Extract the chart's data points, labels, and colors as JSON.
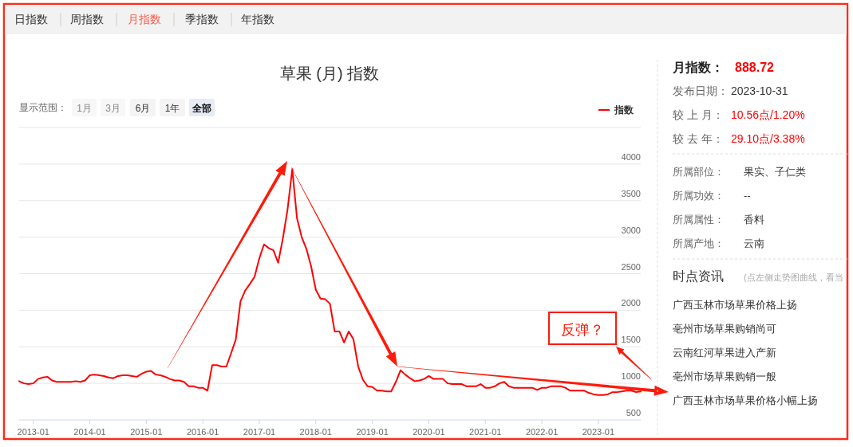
{
  "chart_data": [
    {
      "type": "line",
      "title": "草果 (月) 指数",
      "legend": "top right",
      "grid": "y",
      "x": [
        "2012-10",
        "2012-11",
        "2012-12",
        "2013-01",
        "2013-02",
        "2013-03",
        "2013-04",
        "2013-05",
        "2013-06",
        "2013-07",
        "2013-08",
        "2013-09",
        "2013-10",
        "2013-11",
        "2013-12",
        "2014-01",
        "2014-02",
        "2014-03",
        "2014-04",
        "2014-05",
        "2014-06",
        "2014-07",
        "2014-08",
        "2014-09",
        "2014-10",
        "2014-11",
        "2014-12",
        "2015-01",
        "2015-02",
        "2015-03",
        "2015-04",
        "2015-05",
        "2015-06",
        "2015-07",
        "2015-08",
        "2015-09",
        "2015-10",
        "2015-11",
        "2015-12",
        "2016-01",
        "2016-02",
        "2016-03",
        "2016-04",
        "2016-05",
        "2016-06",
        "2016-07",
        "2016-08",
        "2016-09",
        "2016-10",
        "2016-11",
        "2016-12",
        "2017-01",
        "2017-02",
        "2017-03",
        "2017-04",
        "2017-05",
        "2017-06",
        "2017-07",
        "2017-08",
        "2017-09",
        "2017-10",
        "2017-11",
        "2017-12",
        "2018-01",
        "2018-02",
        "2018-03",
        "2018-04",
        "2018-05",
        "2018-06",
        "2018-07",
        "2018-08",
        "2018-09",
        "2018-10",
        "2018-11",
        "2018-12",
        "2019-01",
        "2019-02",
        "2019-03",
        "2019-04",
        "2019-05",
        "2019-06",
        "2019-07",
        "2019-08",
        "2019-09",
        "2019-10",
        "2019-11",
        "2019-12",
        "2020-01",
        "2020-02",
        "2020-03",
        "2020-04",
        "2020-05",
        "2020-06",
        "2020-07",
        "2020-08",
        "2020-09",
        "2020-10",
        "2020-11",
        "2020-12",
        "2021-01",
        "2021-02",
        "2021-03",
        "2021-04",
        "2021-05",
        "2021-06",
        "2021-07",
        "2021-08",
        "2021-09",
        "2021-10",
        "2021-11",
        "2021-12",
        "2022-01",
        "2022-02",
        "2022-03",
        "2022-04",
        "2022-05",
        "2022-06",
        "2022-07",
        "2022-08",
        "2022-09",
        "2022-10",
        "2022-11",
        "2022-12",
        "2023-01",
        "2023-02",
        "2023-03",
        "2023-04",
        "2023-05",
        "2023-06",
        "2023-07",
        "2023-08",
        "2023-09",
        "2023-10"
      ],
      "series": [
        {
          "name": "指数",
          "color": "#ff0000",
          "values": [
            1030,
            1000,
            990,
            1000,
            1060,
            1080,
            1090,
            1040,
            1020,
            1020,
            1020,
            1020,
            1030,
            1020,
            1040,
            1110,
            1120,
            1110,
            1100,
            1080,
            1070,
            1100,
            1110,
            1110,
            1100,
            1090,
            1130,
            1160,
            1170,
            1120,
            1110,
            1090,
            1060,
            1040,
            1040,
            1020,
            960,
            960,
            940,
            940,
            900,
            1250,
            1250,
            1230,
            1230,
            1410,
            1600,
            2120,
            2270,
            2360,
            2460,
            2710,
            2900,
            2850,
            2820,
            2650,
            2980,
            3380,
            3930,
            3260,
            3000,
            2840,
            2600,
            2280,
            2160,
            2150,
            2090,
            1710,
            1710,
            1560,
            1710,
            1600,
            1230,
            1050,
            960,
            950,
            900,
            900,
            890,
            890,
            1020,
            1180,
            1120,
            1070,
            1030,
            1040,
            1060,
            1100,
            1060,
            1060,
            1060,
            1000,
            990,
            990,
            990,
            960,
            960,
            960,
            990,
            940,
            940,
            960,
            1000,
            1020,
            960,
            940,
            940,
            940,
            940,
            940,
            910,
            940,
            940,
            960,
            960,
            960,
            940,
            900,
            900,
            900,
            900,
            870,
            850,
            840,
            840,
            850,
            880,
            880,
            890,
            900,
            900,
            880,
            890
          ]
        }
      ],
      "xlim": [
        "2012-10",
        "2023-10"
      ],
      "xticks": [
        "2013-01",
        "2014-01",
        "2015-01",
        "2016-01",
        "2017-01",
        "2018-01",
        "2019-01",
        "2020-01",
        "2021-01",
        "2022-01",
        "2023-01"
      ],
      "ylim": [
        500,
        4500
      ],
      "yticks": [
        500,
        1000,
        1500,
        2000,
        2500,
        3000,
        3500,
        4000,
        {
          "value": 4500,
          "label": null
        }
      ],
      "annotations": [
        "日指数",
        "周指数",
        "月指数",
        "季指数",
        "年指数",
        "显示范围：",
        "1月",
        "3月",
        "6月",
        "1年",
        "全部",
        "反弹？"
      ]
    },
    {
      "type": "other",
      "annotations": [
        "月指数：",
        "888.72",
        "发布日期：",
        "2023-10-31",
        "较 上 月：",
        "10.56点/1.20%",
        "较 去 年：",
        "29.10点/3.38%",
        "所属部位：",
        "果实、子仁类",
        "所属功效：",
        "--",
        "所属属性：",
        "香料",
        "所属产地：",
        "云南",
        "时点资讯",
        "(点左侧走势图曲线，看当",
        "广西玉林市场草果价格上扬",
        "亳州市场草果购销尚可",
        "云南红河草果进入产新",
        "亳州市场草果购销一般",
        "广西玉林市场草果价格小幅上扬"
      ]
    }
  ]
}
